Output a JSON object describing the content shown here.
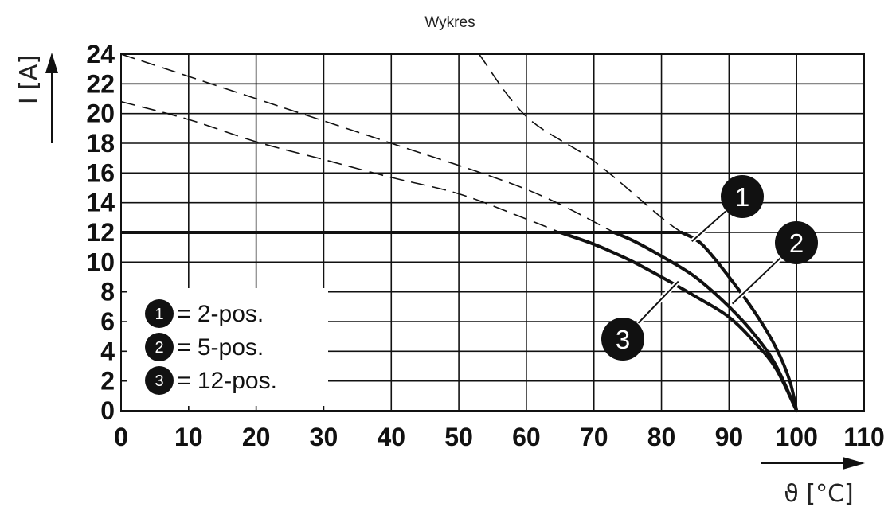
{
  "chart_data": {
    "type": "line",
    "title": "Wykres",
    "xlabel": "ϑ [°C]",
    "ylabel": "I [A]",
    "xlim": [
      0,
      110
    ],
    "ylim": [
      0,
      24
    ],
    "xticks": [
      "0",
      "10",
      "20",
      "30",
      "40",
      "50",
      "60",
      "70",
      "80",
      "90",
      "100",
      "110"
    ],
    "yticks": [
      "0",
      "2",
      "4",
      "6",
      "8",
      "10",
      "12",
      "14",
      "16",
      "18",
      "20",
      "22",
      "24"
    ],
    "grid": true,
    "series": [
      {
        "name": "2-pos.",
        "marker": "1",
        "values": [
          [
            0,
            12
          ],
          [
            83,
            12
          ],
          [
            86,
            11.2
          ],
          [
            90,
            9
          ],
          [
            94,
            6.5
          ],
          [
            97,
            4.2
          ],
          [
            99,
            2
          ],
          [
            100,
            0
          ]
        ],
        "extrapolated": [
          [
            53,
            24
          ],
          [
            60,
            19.8
          ],
          [
            70,
            16.8
          ],
          [
            80,
            13
          ],
          [
            83,
            12
          ]
        ]
      },
      {
        "name": "5-pos.",
        "marker": "2",
        "values": [
          [
            0,
            12
          ],
          [
            73,
            12
          ],
          [
            76,
            11.4
          ],
          [
            80,
            10.4
          ],
          [
            85,
            9
          ],
          [
            90,
            7
          ],
          [
            94,
            5
          ],
          [
            97,
            3
          ],
          [
            100,
            0
          ]
        ],
        "extrapolated": [
          [
            0,
            24
          ],
          [
            20,
            21
          ],
          [
            40,
            18
          ],
          [
            60,
            14.9
          ],
          [
            73,
            12
          ]
        ]
      },
      {
        "name": "12-pos.",
        "marker": "3",
        "values": [
          [
            0,
            12
          ],
          [
            65,
            12
          ],
          [
            70,
            11.2
          ],
          [
            75,
            10.2
          ],
          [
            80,
            9
          ],
          [
            85,
            7.7
          ],
          [
            90,
            6.3
          ],
          [
            94,
            4.5
          ],
          [
            97,
            2.8
          ],
          [
            100,
            0
          ]
        ],
        "extrapolated": [
          [
            0,
            20.8
          ],
          [
            10,
            19.6
          ],
          [
            20,
            18.1
          ],
          [
            30,
            16.9
          ],
          [
            40,
            15.7
          ],
          [
            50,
            14.6
          ],
          [
            60,
            12.9
          ],
          [
            65,
            12
          ]
        ]
      }
    ],
    "legend": {
      "placement": "bottom-left",
      "entries": [
        {
          "marker": "1",
          "text": "= 2-pos."
        },
        {
          "marker": "2",
          "text": "= 5-pos."
        },
        {
          "marker": "3",
          "text": "= 12-pos."
        }
      ]
    },
    "callouts": [
      {
        "marker": "1",
        "series": "2-pos.",
        "point": [
          84.5,
          11.4
        ]
      },
      {
        "marker": "2",
        "series": "5-pos.",
        "point": [
          90.5,
          7.2
        ]
      },
      {
        "marker": "3",
        "series": "12-pos.",
        "point": [
          82.5,
          8.7
        ]
      }
    ]
  }
}
